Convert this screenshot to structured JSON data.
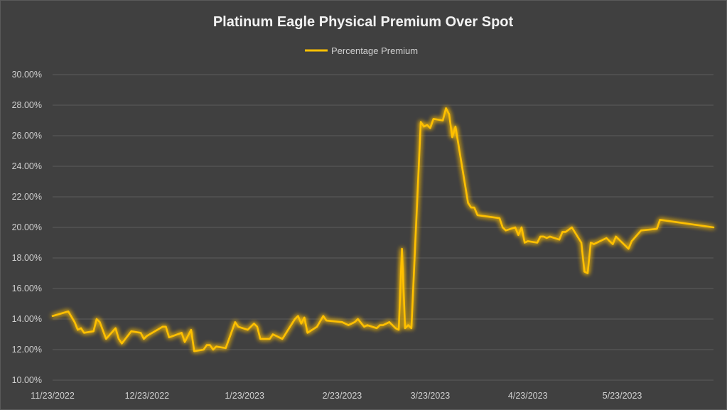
{
  "chart_data": {
    "type": "line",
    "title": "Platinum Eagle Physical Premium Over Spot",
    "xlabel": "",
    "ylabel": "",
    "ylim": [
      0.1,
      0.3
    ],
    "y_ticks": [
      "10.00%",
      "12.00%",
      "14.00%",
      "16.00%",
      "18.00%",
      "20.00%",
      "22.00%",
      "24.00%",
      "26.00%",
      "28.00%",
      "30.00%"
    ],
    "x_range": [
      "2022-11-23",
      "2023-06-21"
    ],
    "x_ticks": [
      {
        "date": "2022-11-23",
        "label": "11/23/2022"
      },
      {
        "date": "2022-12-23",
        "label": "12/23/2022"
      },
      {
        "date": "2023-01-23",
        "label": "1/23/2023"
      },
      {
        "date": "2023-02-23",
        "label": "2/23/2023"
      },
      {
        "date": "2023-03-23",
        "label": "3/23/2023"
      },
      {
        "date": "2023-04-23",
        "label": "4/23/2023"
      },
      {
        "date": "2023-05-23",
        "label": "5/23/2023"
      }
    ],
    "grid": true,
    "legend_position": "top-center",
    "series": [
      {
        "name": "Percentage Premium",
        "color": "#ffc000",
        "points": [
          [
            "2022-11-23",
            0.142
          ],
          [
            "2022-11-28",
            0.145
          ],
          [
            "2022-11-30",
            0.138
          ],
          [
            "2022-12-01",
            0.133
          ],
          [
            "2022-12-02",
            0.134
          ],
          [
            "2022-12-03",
            0.131
          ],
          [
            "2022-12-06",
            0.132
          ],
          [
            "2022-12-07",
            0.14
          ],
          [
            "2022-12-08",
            0.138
          ],
          [
            "2022-12-10",
            0.127
          ],
          [
            "2022-12-13",
            0.134
          ],
          [
            "2022-12-14",
            0.127
          ],
          [
            "2022-12-15",
            0.124
          ],
          [
            "2022-12-18",
            0.132
          ],
          [
            "2022-12-21",
            0.131
          ],
          [
            "2022-12-22",
            0.127
          ],
          [
            "2022-12-23",
            0.129
          ],
          [
            "2022-12-28",
            0.135
          ],
          [
            "2022-12-29",
            0.135
          ],
          [
            "2022-12-30",
            0.128
          ],
          [
            "2023-01-03",
            0.131
          ],
          [
            "2023-01-04",
            0.125
          ],
          [
            "2023-01-06",
            0.133
          ],
          [
            "2023-01-07",
            0.119
          ],
          [
            "2023-01-10",
            0.12
          ],
          [
            "2023-01-11",
            0.123
          ],
          [
            "2023-01-12",
            0.123
          ],
          [
            "2023-01-13",
            0.12
          ],
          [
            "2023-01-14",
            0.122
          ],
          [
            "2023-01-17",
            0.121
          ],
          [
            "2023-01-20",
            0.138
          ],
          [
            "2023-01-21",
            0.135
          ],
          [
            "2023-01-24",
            0.133
          ],
          [
            "2023-01-26",
            0.137
          ],
          [
            "2023-01-27",
            0.135
          ],
          [
            "2023-01-28",
            0.127
          ],
          [
            "2023-01-31",
            0.127
          ],
          [
            "2023-02-01",
            0.13
          ],
          [
            "2023-02-03",
            0.128
          ],
          [
            "2023-02-04",
            0.127
          ],
          [
            "2023-02-08",
            0.14
          ],
          [
            "2023-02-09",
            0.142
          ],
          [
            "2023-02-10",
            0.137
          ],
          [
            "2023-02-11",
            0.141
          ],
          [
            "2023-02-12",
            0.131
          ],
          [
            "2023-02-15",
            0.135
          ],
          [
            "2023-02-17",
            0.142
          ],
          [
            "2023-02-18",
            0.139
          ],
          [
            "2023-02-23",
            0.138
          ],
          [
            "2023-02-25",
            0.136
          ],
          [
            "2023-02-27",
            0.138
          ],
          [
            "2023-02-28",
            0.14
          ],
          [
            "2023-03-02",
            0.135
          ],
          [
            "2023-03-03",
            0.136
          ],
          [
            "2023-03-06",
            0.134
          ],
          [
            "2023-03-07",
            0.136
          ],
          [
            "2023-03-08",
            0.136
          ],
          [
            "2023-03-10",
            0.138
          ],
          [
            "2023-03-12",
            0.134
          ],
          [
            "2023-03-13",
            0.133
          ],
          [
            "2023-03-14",
            0.186
          ],
          [
            "2023-03-15",
            0.134
          ],
          [
            "2023-03-16",
            0.136
          ],
          [
            "2023-03-17",
            0.134
          ],
          [
            "2023-03-20",
            0.269
          ],
          [
            "2023-03-21",
            0.266
          ],
          [
            "2023-03-22",
            0.267
          ],
          [
            "2023-03-23",
            0.265
          ],
          [
            "2023-03-24",
            0.271
          ],
          [
            "2023-03-27",
            0.27
          ],
          [
            "2023-03-28",
            0.278
          ],
          [
            "2023-03-29",
            0.274
          ],
          [
            "2023-03-30",
            0.259
          ],
          [
            "2023-03-31",
            0.266
          ],
          [
            "2023-04-04",
            0.216
          ],
          [
            "2023-04-05",
            0.213
          ],
          [
            "2023-04-06",
            0.213
          ],
          [
            "2023-04-07",
            0.208
          ],
          [
            "2023-04-14",
            0.206
          ],
          [
            "2023-04-15",
            0.2
          ],
          [
            "2023-04-16",
            0.198
          ],
          [
            "2023-04-19",
            0.2
          ],
          [
            "2023-04-20",
            0.195
          ],
          [
            "2023-04-21",
            0.2
          ],
          [
            "2023-04-22",
            0.19
          ],
          [
            "2023-04-23",
            0.191
          ],
          [
            "2023-04-26",
            0.19
          ],
          [
            "2023-04-27",
            0.194
          ],
          [
            "2023-04-28",
            0.194
          ],
          [
            "2023-04-29",
            0.193
          ],
          [
            "2023-04-30",
            0.194
          ],
          [
            "2023-05-03",
            0.192
          ],
          [
            "2023-05-04",
            0.197
          ],
          [
            "2023-05-05",
            0.197
          ],
          [
            "2023-05-07",
            0.2
          ],
          [
            "2023-05-10",
            0.19
          ],
          [
            "2023-05-11",
            0.171
          ],
          [
            "2023-05-12",
            0.17
          ],
          [
            "2023-05-13",
            0.19
          ],
          [
            "2023-05-14",
            0.189
          ],
          [
            "2023-05-18",
            0.193
          ],
          [
            "2023-05-19",
            0.191
          ],
          [
            "2023-05-20",
            0.189
          ],
          [
            "2023-05-21",
            0.194
          ],
          [
            "2023-05-25",
            0.186
          ],
          [
            "2023-05-26",
            0.191
          ],
          [
            "2023-05-29",
            0.198
          ],
          [
            "2023-06-03",
            0.199
          ],
          [
            "2023-06-04",
            0.205
          ],
          [
            "2023-06-21",
            0.2
          ]
        ]
      }
    ]
  }
}
